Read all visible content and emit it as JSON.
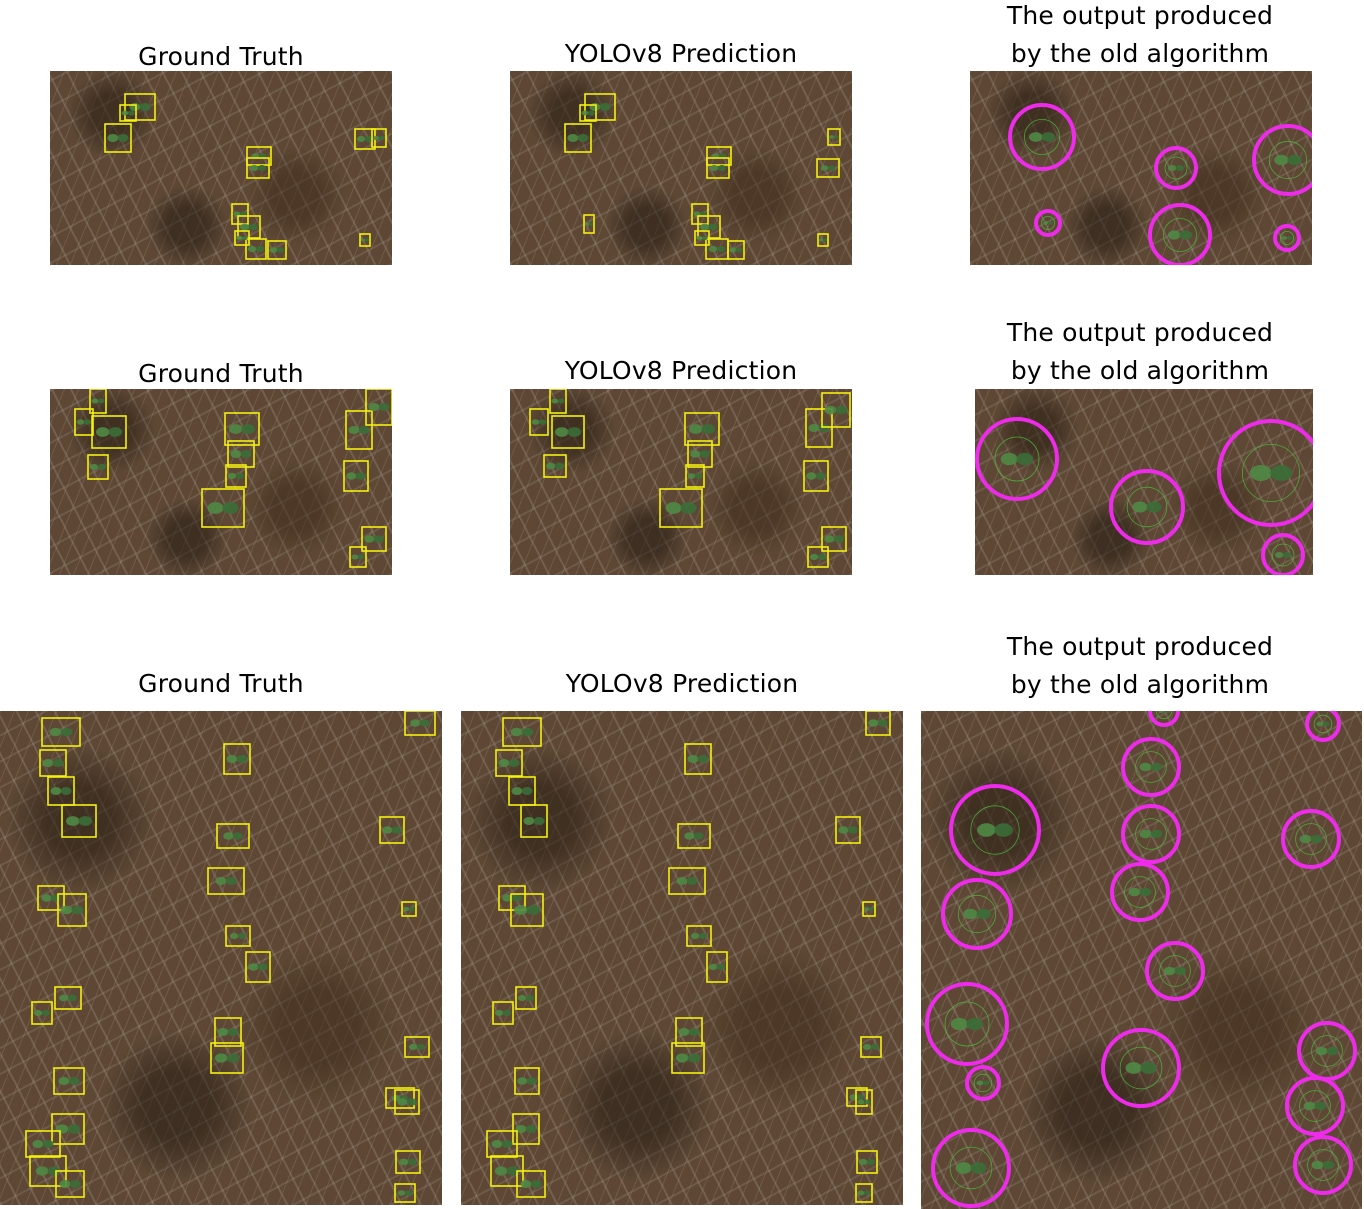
{
  "titles": {
    "ground_truth": "Ground Truth",
    "yolo": "YOLOv8 Prediction",
    "old_line1": "The output produced",
    "old_line2": "by the old algorithm"
  },
  "colors": {
    "box": "#f4f00e",
    "circle": "#ee2bea",
    "leaf": "#4f8a45",
    "leaf_dark": "#3a6e37"
  }
}
